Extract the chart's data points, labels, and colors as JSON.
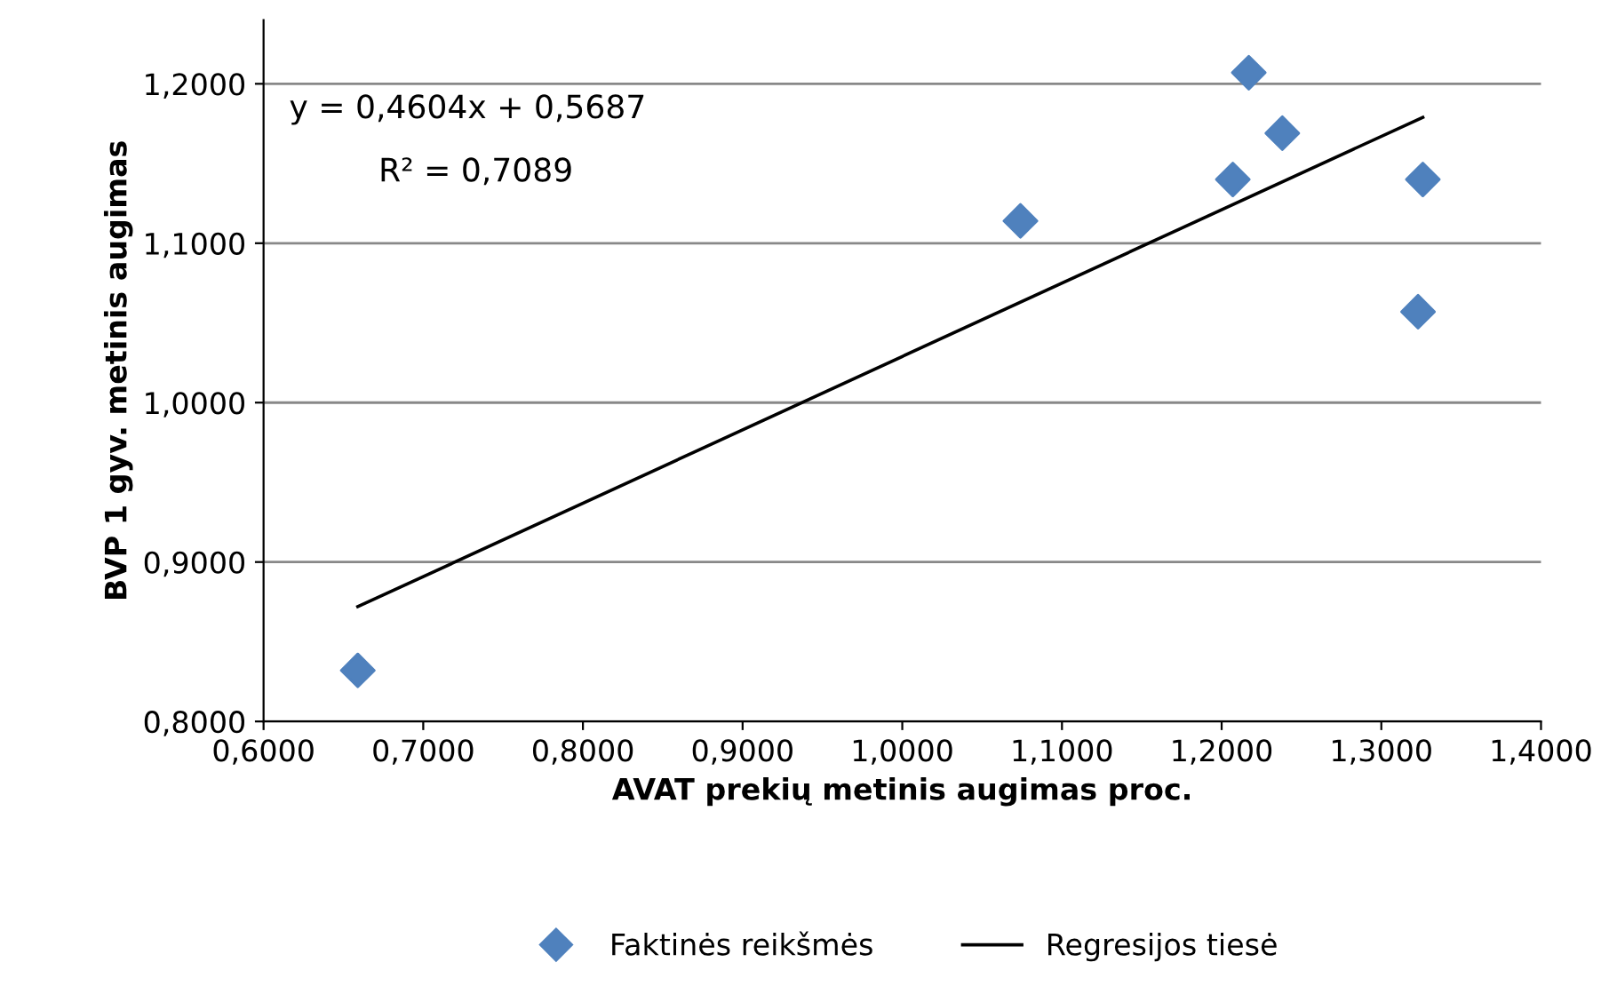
{
  "chart_data": {
    "type": "scatter",
    "xlabel": "AVAT prekių metinis augimas proc.",
    "ylabel": "BVP 1 gyv. metinis augimas",
    "xlim": [
      0.6,
      1.4
    ],
    "xticks": [
      {
        "value": 0.6,
        "label": "0,6000"
      },
      {
        "value": 0.7,
        "label": "0,7000"
      },
      {
        "value": 0.8,
        "label": "0,8000"
      },
      {
        "value": 0.9,
        "label": "0,9000"
      },
      {
        "value": 1.0,
        "label": "1,0000"
      },
      {
        "value": 1.1,
        "label": "1,1000"
      },
      {
        "value": 1.2,
        "label": "1,2000"
      },
      {
        "value": 1.3,
        "label": "1,3000"
      },
      {
        "value": 1.4,
        "label": "1,4000"
      }
    ],
    "ylim": [
      0.8,
      1.24
    ],
    "yticks": [
      {
        "value": 0.8,
        "label": "0,8000"
      },
      {
        "value": 0.9,
        "label": "0,9000"
      },
      {
        "value": 1.0,
        "label": "1,0000"
      },
      {
        "value": 1.1,
        "label": "1,1000"
      },
      {
        "value": 1.2,
        "label": "1,2000"
      }
    ],
    "grid": "y",
    "legend": "bottom",
    "series": [
      {
        "name": "Faktinės reikšmės",
        "color": "#4f81bd",
        "marker": "diamond",
        "x": [
          0.659,
          1.074,
          1.207,
          1.217,
          1.238,
          1.326,
          1.323
        ],
        "values": [
          0.832,
          1.114,
          1.14,
          1.207,
          1.169,
          1.14,
          1.057
        ]
      },
      {
        "name": "Regresijos tiesė",
        "type": "line",
        "color": "#000000",
        "marker": "none",
        "line_style": "solid",
        "x": [
          0.659,
          1.326
        ],
        "values": [
          0.872,
          1.179
        ]
      }
    ],
    "annotations": [
      "y = 0,4604x + 0,5687",
      "R² = 0,7089"
    ]
  }
}
